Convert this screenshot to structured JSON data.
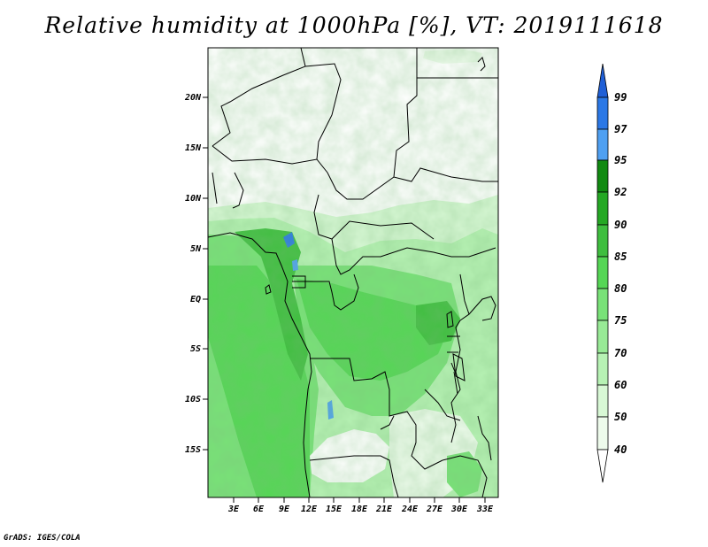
{
  "title": "Relative humidity at 1000hPa [%], VT: 2019111618",
  "credit": "GrADS: IGES/COLA",
  "map": {
    "lon_range": [
      0,
      34.5
    ],
    "lat_range": [
      -20,
      24.5
    ],
    "lon_ticks": [
      "3E",
      "6E",
      "9E",
      "12E",
      "15E",
      "18E",
      "21E",
      "24E",
      "27E",
      "30E",
      "33E"
    ],
    "lat_ticks": [
      "20N",
      "15N",
      "10N",
      "5N",
      "EQ",
      "5S",
      "10S",
      "15S"
    ]
  },
  "colorbar": {
    "labels": [
      "99",
      "97",
      "95",
      "92",
      "90",
      "85",
      "80",
      "75",
      "70",
      "60",
      "50",
      "40"
    ],
    "colors": [
      "#1f5fd6",
      "#2b78e6",
      "#4fa0f2",
      "#118a11",
      "#25a824",
      "#3fbe3f",
      "#55d655",
      "#79e278",
      "#98ea96",
      "#b7f2b4",
      "#d8f8d5",
      "#eefbec",
      "#ffffff"
    ]
  }
}
